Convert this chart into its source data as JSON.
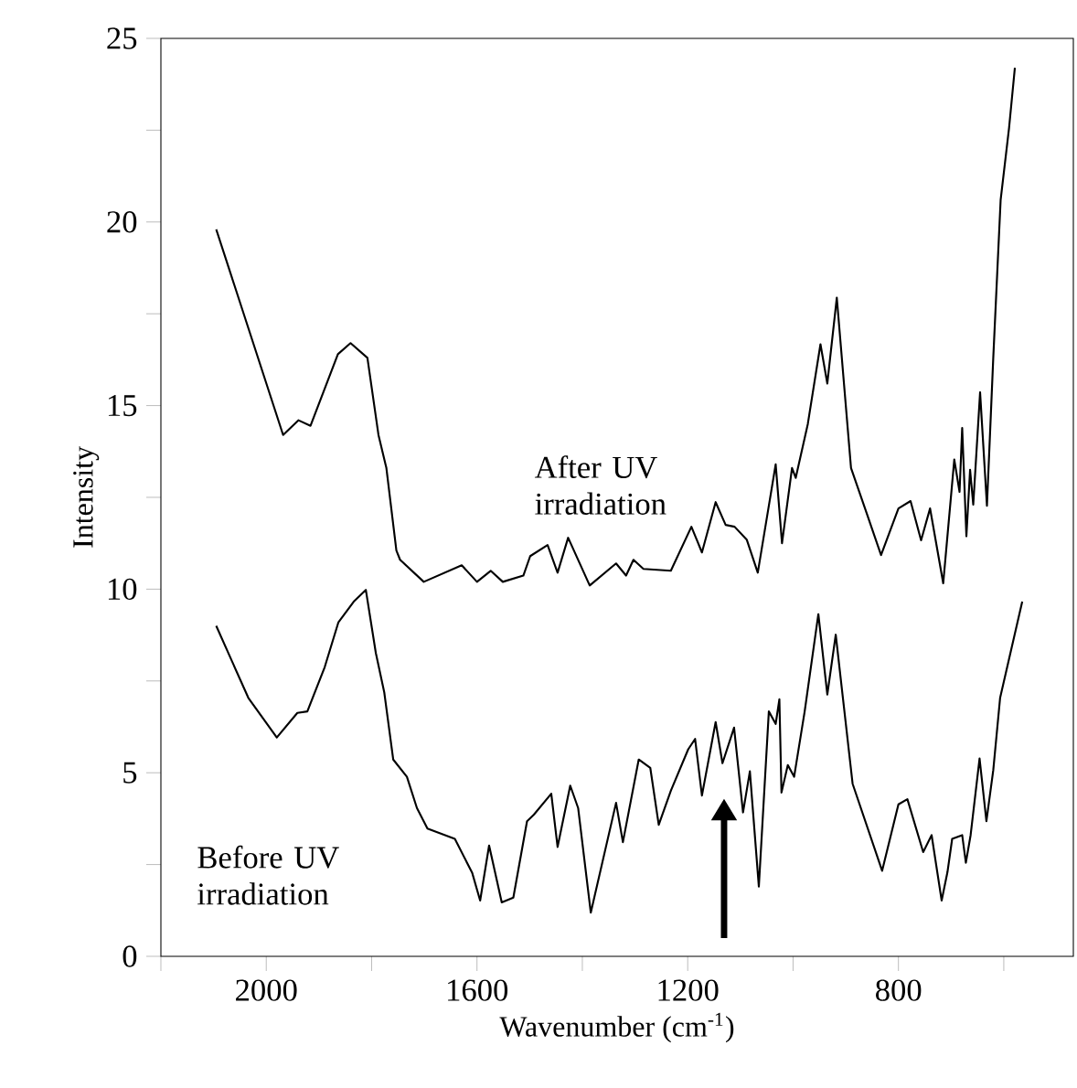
{
  "chart_data": {
    "type": "line",
    "xlabel": "Wavenumber (cm$^{-1}$)",
    "ylabel": "Intensity",
    "xlim": [
      2200,
      468
    ],
    "ylim": [
      0,
      25
    ],
    "xticks": [
      {
        "value": 2200,
        "label": null
      },
      2000,
      {
        "value": 1800,
        "label": null
      },
      1600,
      {
        "value": 1400,
        "label": null
      },
      1200,
      {
        "value": 1000,
        "label": null
      },
      800,
      {
        "value": 600,
        "label": null
      }
    ],
    "yticks": [
      0,
      {
        "value": 2.5,
        "label": null
      },
      5,
      {
        "value": 7.5,
        "label": null
      },
      10,
      {
        "value": 12.5,
        "label": null
      },
      15,
      {
        "value": 17.5,
        "label": null
      },
      20,
      {
        "value": 22.5,
        "label": null
      },
      25
    ],
    "series": [
      {
        "name": "After UV irradiation",
        "color": "#000000",
        "x": [
          2095,
          1968,
          1939,
          1916,
          1864,
          1840,
          1808,
          1787,
          1772,
          1753,
          1746,
          1701,
          1629,
          1600,
          1574,
          1551,
          1512,
          1499,
          1466,
          1447,
          1427,
          1386,
          1336,
          1317,
          1303,
          1284,
          1232,
          1193,
          1173,
          1147,
          1128,
          1111,
          1088,
          1067,
          1033,
          1021,
          1002,
          995,
          972,
          948,
          935,
          917,
          890,
          861,
          833,
          800,
          777,
          757,
          740,
          715,
          694,
          684,
          679,
          671,
          664,
          658,
          645,
          632,
          620,
          606,
          590,
          579
        ],
        "values": [
          19.8,
          14.2,
          14.6,
          14.45,
          16.4,
          16.7,
          16.3,
          14.2,
          13.3,
          11.05,
          10.8,
          10.2,
          10.65,
          10.2,
          10.5,
          10.2,
          10.37,
          10.9,
          11.2,
          10.45,
          11.4,
          10.1,
          10.7,
          10.37,
          10.8,
          10.55,
          10.5,
          11.7,
          11.0,
          12.37,
          11.75,
          11.7,
          11.35,
          10.45,
          13.4,
          11.25,
          13.3,
          13.03,
          14.5,
          16.67,
          15.6,
          17.94,
          13.3,
          12.1,
          10.93,
          12.2,
          12.4,
          11.33,
          12.2,
          10.16,
          13.53,
          12.65,
          14.39,
          11.44,
          13.25,
          12.3,
          15.36,
          12.27,
          16.3,
          20.6,
          22.56,
          24.2
        ]
      },
      {
        "name": "Before UV irradiation",
        "color": "#000000",
        "x": [
          2095,
          2034,
          1980,
          1941,
          1922,
          1889,
          1863,
          1834,
          1811,
          1792,
          1776,
          1759,
          1733,
          1714,
          1694,
          1642,
          1609,
          1594,
          1577,
          1553,
          1531,
          1505,
          1492,
          1459,
          1447,
          1423,
          1408,
          1384,
          1336,
          1323,
          1293,
          1271,
          1255,
          1232,
          1199,
          1186,
          1173,
          1147,
          1134,
          1112,
          1095,
          1082,
          1065,
          1046,
          1033,
          1026,
          1022,
          1010,
          998,
          978,
          952,
          935,
          919,
          887,
          831,
          800,
          783,
          753,
          737,
          718,
          707,
          698,
          679,
          672,
          663,
          646,
          633,
          620,
          607,
          565
        ],
        "values": [
          9.0,
          7.04,
          5.96,
          6.63,
          6.67,
          7.88,
          9.1,
          9.66,
          9.98,
          8.26,
          7.19,
          5.36,
          4.89,
          4.04,
          3.48,
          3.2,
          2.27,
          1.52,
          3.02,
          1.47,
          1.6,
          3.68,
          3.86,
          4.43,
          2.98,
          4.65,
          4.04,
          1.19,
          4.18,
          3.11,
          5.36,
          5.13,
          3.58,
          4.51,
          5.64,
          5.92,
          4.38,
          6.38,
          5.26,
          6.23,
          3.92,
          5.04,
          1.9,
          6.67,
          6.33,
          7.0,
          4.46,
          5.21,
          4.89,
          6.67,
          9.32,
          7.13,
          8.76,
          4.7,
          2.33,
          4.14,
          4.28,
          2.84,
          3.3,
          1.52,
          2.29,
          3.2,
          3.3,
          2.55,
          3.3,
          5.39,
          3.68,
          5.07,
          7.04,
          9.66
        ]
      }
    ]
  }
}
